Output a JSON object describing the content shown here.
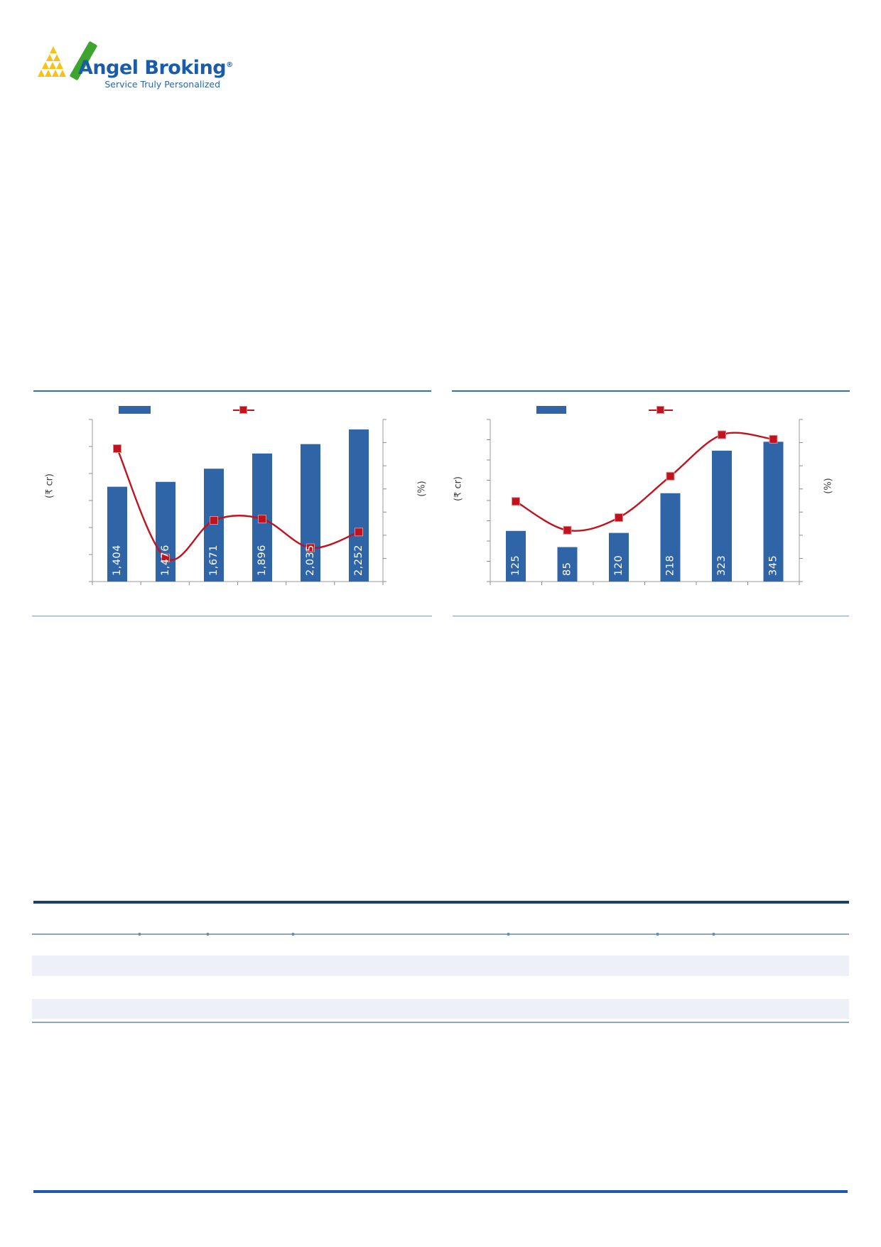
{
  "logo": {
    "brand": "Angel Broking",
    "registered": "®",
    "tagline": "Service Truly Personalized"
  },
  "colors": {
    "bar_blue": "#2F64A7",
    "line_red": "#C1121F",
    "marker_edge": "#DD8C8C",
    "axis_gray": "#9B9B9B",
    "tick_gray": "#8C8C8C",
    "bar_label_white": "#FFFFFF",
    "chart_topline_blue": "#2E74B5",
    "source_line_blue": "#7E9DBE",
    "table_heavy_navy": "#1B4169",
    "table_light_blue": "#8AA6C2",
    "row_band_blue": "#EDF1F7",
    "footer_blue": "#1D5AA9",
    "brand_blue": "#1A5CA8",
    "tagline_blue": "#2767B0",
    "logo_green": "#3DA42E",
    "logo_gold": "#F6C21A"
  },
  "chart_data": [
    {
      "id": "left-combo-chart",
      "type": "bar+line",
      "categories": [
        "",
        "",
        "",
        "",
        "",
        ""
      ],
      "bar_values": [
        1404,
        1476,
        1671,
        1896,
        2035,
        2252
      ],
      "bar_labels": [
        "1,404",
        "1,476",
        "1,671",
        "1,896",
        "2,035",
        "2,252"
      ],
      "bar_axis_label": "(₹ cr)",
      "bar_ylim": [
        0,
        2400
      ],
      "line_values": [
        28.7,
        5.1,
        13.2,
        13.5,
        7.3,
        10.7
      ],
      "line_axis_label": "(%)",
      "line_ylim": [
        0,
        35
      ],
      "legend": {
        "bar_label": "",
        "line_label": ""
      },
      "x_tick_labels_visible": false,
      "y_tick_labels_visible": false,
      "grid": false,
      "legend_position": "top"
    },
    {
      "id": "right-combo-chart",
      "type": "bar+line",
      "categories": [
        "",
        "",
        "",
        "",
        "",
        ""
      ],
      "bar_values": [
        125,
        85,
        120,
        218,
        323,
        345
      ],
      "bar_labels": [
        "125",
        "85",
        "120",
        "218",
        "323",
        "345"
      ],
      "bar_axis_label": "(₹ cr)",
      "bar_ylim": [
        0,
        400
      ],
      "line_values": [
        8.9,
        5.7,
        7.1,
        11.7,
        16.3,
        15.8
      ],
      "line_axis_label": "(%)",
      "line_ylim": [
        0,
        18
      ],
      "legend": {
        "bar_label": "",
        "line_label": ""
      },
      "x_tick_labels_visible": false,
      "y_tick_labels_visible": false,
      "grid": false,
      "legend_position": "top"
    }
  ]
}
